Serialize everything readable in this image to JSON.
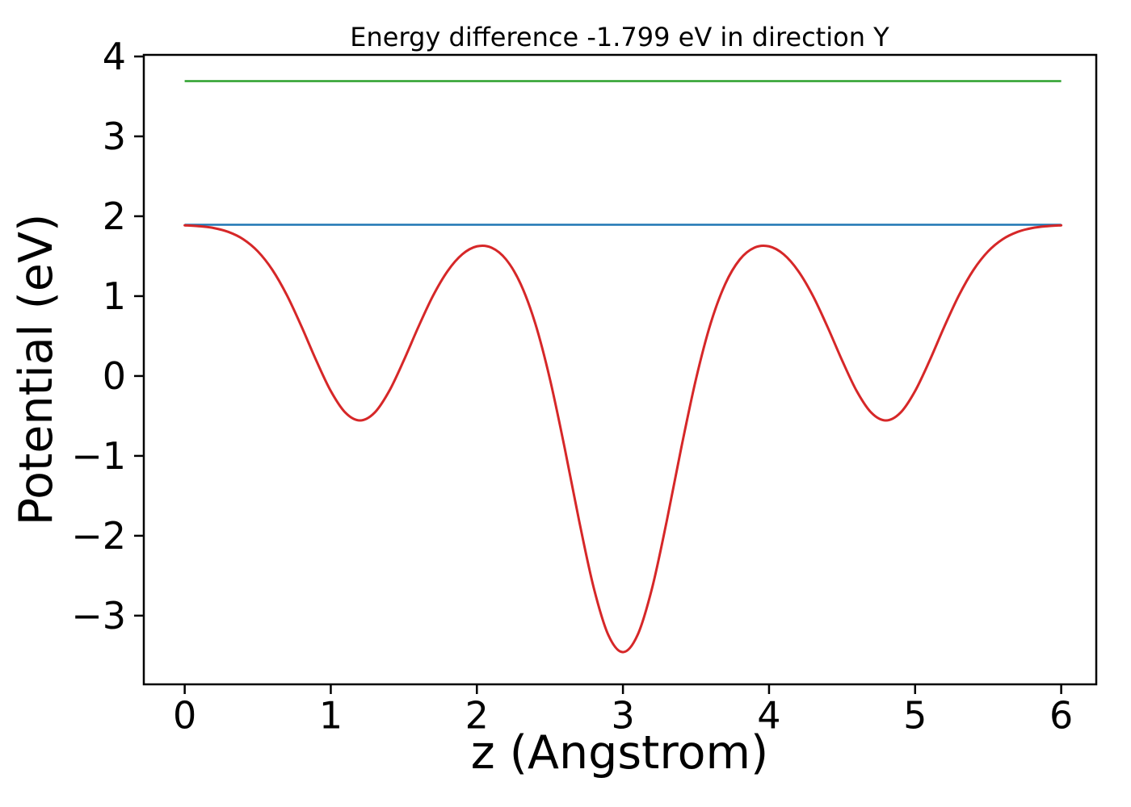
{
  "figure": {
    "background": "#ffffff",
    "spine_color": "#000000"
  },
  "chart_data": {
    "type": "line",
    "title": "Energy difference -1.799 eV in direction Y",
    "xlabel": "z (Angstrom)",
    "ylabel": "Potential (eV)",
    "xlim": [
      -0.28,
      6.24
    ],
    "ylim": [
      -3.86,
      4.02
    ],
    "grid": false,
    "legend": null,
    "xticks": {
      "values": [
        0,
        1,
        2,
        3,
        4,
        5,
        6
      ],
      "labels": [
        "0",
        "1",
        "2",
        "3",
        "4",
        "5",
        "6"
      ]
    },
    "yticks": {
      "values": [
        -3,
        -2,
        -1,
        0,
        1,
        2,
        3,
        4
      ],
      "labels": [
        "−3",
        "−2",
        "−1",
        "0",
        "1",
        "2",
        "3",
        "4"
      ]
    },
    "series": [
      {
        "name": "vacuum-level-line",
        "type": "hline",
        "color": "#2ca02c",
        "y": 3.692,
        "x_range": [
          0,
          6
        ],
        "linewidth": 2.5
      },
      {
        "name": "reference-level-line",
        "type": "hline",
        "color": "#1f77b4",
        "y": 1.893,
        "x_range": [
          0,
          6
        ],
        "linewidth": 2.5
      },
      {
        "name": "planar-average-potential-curve",
        "type": "curve",
        "color": "#d62728",
        "linewidth": 3,
        "x": [
          0.0,
          0.1,
          0.2,
          0.3,
          0.4,
          0.5,
          0.6,
          0.7,
          0.8,
          0.9,
          1.0,
          1.1,
          1.2,
          1.3,
          1.4,
          1.5,
          1.6,
          1.7,
          1.8,
          1.9,
          2.0,
          2.1,
          2.2,
          2.3,
          2.4,
          2.5,
          2.6,
          2.7,
          2.8,
          2.9,
          3.0,
          3.1,
          3.2,
          3.3,
          3.4,
          3.5,
          3.6,
          3.7,
          3.8,
          3.9,
          4.0,
          4.1,
          4.2,
          4.3,
          4.4,
          4.5,
          4.6,
          4.7,
          4.8,
          4.9,
          5.0,
          5.1,
          5.2,
          5.3,
          5.4,
          5.5,
          5.6,
          5.7,
          5.8,
          5.9,
          6.0
        ],
        "y": [
          1.886,
          1.875,
          1.852,
          1.803,
          1.713,
          1.561,
          1.329,
          1.01,
          0.618,
          0.196,
          -0.188,
          -0.459,
          -0.557,
          -0.459,
          -0.188,
          0.196,
          0.616,
          1.005,
          1.314,
          1.523,
          1.623,
          1.607,
          1.459,
          1.151,
          0.656,
          -0.038,
          -0.892,
          -1.813,
          -2.651,
          -3.243,
          -3.457,
          -3.243,
          -2.651,
          -1.813,
          -0.892,
          -0.038,
          0.656,
          1.151,
          1.459,
          1.607,
          1.623,
          1.523,
          1.314,
          1.005,
          0.616,
          0.196,
          -0.188,
          -0.459,
          -0.557,
          -0.459,
          -0.188,
          0.196,
          0.618,
          1.01,
          1.329,
          1.561,
          1.713,
          1.803,
          1.852,
          1.875,
          1.886
        ]
      }
    ]
  }
}
